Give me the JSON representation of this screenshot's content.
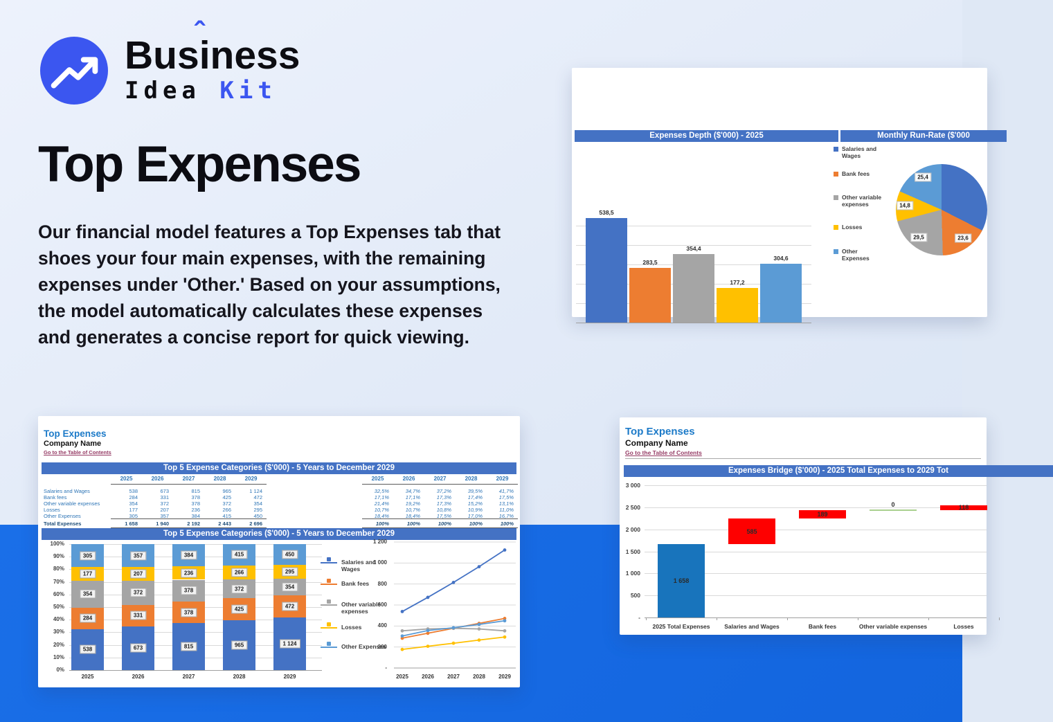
{
  "brand": {
    "word_pre": "Bus",
    "word_i": "i",
    "word_caret": "ˆ",
    "word_post": "ness",
    "line2_left": "Idea",
    "line2_right": "Kit",
    "accent_color": "#3b56f0"
  },
  "hero": {
    "title": "Top Expenses",
    "paragraph": "Our financial model features a Top Expenses tab that shoes your four main expenses, with the remaining expenses under 'Other.' Based on your assumptions, the model automatically calculates these expenses and generates a concise report for quick viewing."
  },
  "colors": {
    "banner": "#4472c4",
    "footer_band": "#1568e0",
    "series": [
      "#4472c4",
      "#ed7d31",
      "#a5a5a5",
      "#ffc000",
      "#5b9bd5"
    ],
    "bridge_base": "#1874bc",
    "bridge_delta": "#fe0000",
    "bridge_zero": "#a9d08e"
  },
  "legend_labels": [
    "Salaries and Wages",
    "Bank fees",
    "Other variable expenses",
    "Losses",
    "Other Expenses"
  ],
  "sheet_header": {
    "title": "Top Expenses",
    "company": "Company Name",
    "link": "Go to the Table of Contents"
  },
  "depth_chart": {
    "type": "bar",
    "title": "Expenses Depth ($'000) - 2025",
    "categories": [
      "Salaries and Wages",
      "Bank fees",
      "Other variable expenses",
      "Losses",
      "Other Expenses"
    ],
    "values": [
      538.5,
      283.5,
      354.4,
      177.2,
      304.6
    ],
    "value_labels": [
      "538,5",
      "283,5",
      "354,4",
      "177,2",
      "304,6"
    ],
    "ymax": 600,
    "grid_step": 100
  },
  "runrate_pie": {
    "type": "pie",
    "title": "Monthly Run-Rate ($'000",
    "slices": [
      {
        "name": "Salaries and Wages",
        "value": 44.9,
        "label": ""
      },
      {
        "name": "Bank fees",
        "value": 23.6,
        "label": "23,6"
      },
      {
        "name": "Other variable expenses",
        "value": 29.5,
        "label": "29,5"
      },
      {
        "name": "Losses",
        "value": 14.8,
        "label": "14,8"
      },
      {
        "name": "Other Expenses",
        "value": 25.4,
        "label": "25,4"
      }
    ]
  },
  "categories_table": {
    "banner": "Top 5 Expense Categories ($'000) - 5 Years to December 2029",
    "years": [
      "2025",
      "2026",
      "2027",
      "2028",
      "2029"
    ],
    "rows": [
      {
        "label": "Salaries and Wages",
        "values": [
          "538",
          "673",
          "815",
          "965",
          "1 124"
        ],
        "pcts": [
          "32,5%",
          "34,7%",
          "37,2%",
          "39,5%",
          "41,7%"
        ]
      },
      {
        "label": "Bank fees",
        "values": [
          "284",
          "331",
          "378",
          "425",
          "472"
        ],
        "pcts": [
          "17,1%",
          "17,1%",
          "17,3%",
          "17,4%",
          "17,5%"
        ]
      },
      {
        "label": "Other variable expenses",
        "values": [
          "354",
          "372",
          "378",
          "372",
          "354"
        ],
        "pcts": [
          "21,4%",
          "19,2%",
          "17,3%",
          "15,2%",
          "13,1%"
        ]
      },
      {
        "label": "Losses",
        "values": [
          "177",
          "207",
          "236",
          "266",
          "295"
        ],
        "pcts": [
          "10,7%",
          "10,7%",
          "10,8%",
          "10,9%",
          "11,0%"
        ]
      },
      {
        "label": "Other Expenses",
        "values": [
          "305",
          "357",
          "384",
          "415",
          "450"
        ],
        "pcts": [
          "18,4%",
          "18,4%",
          "17,5%",
          "17,0%",
          "16,7%"
        ]
      }
    ],
    "total": {
      "label": "Total Expenses",
      "values": [
        "1 658",
        "1 940",
        "2 192",
        "2 443",
        "2 696"
      ],
      "pcts": [
        "100%",
        "100%",
        "100%",
        "100%",
        "100%"
      ]
    }
  },
  "stacked_chart": {
    "type": "bar",
    "banner": "Top 5 Expense Categories ($'000) - 5 Years to December 2029",
    "categories": [
      "2025",
      "2026",
      "2027",
      "2028",
      "2029"
    ],
    "series": [
      {
        "name": "Salaries and Wages",
        "values": [
          538,
          673,
          815,
          965,
          1124
        ],
        "labels": [
          "538",
          "673",
          "815",
          "965",
          "1 124"
        ]
      },
      {
        "name": "Bank fees",
        "values": [
          284,
          331,
          378,
          425,
          472
        ],
        "labels": [
          "284",
          "331",
          "378",
          "425",
          "472"
        ]
      },
      {
        "name": "Other variable expenses",
        "values": [
          354,
          372,
          378,
          372,
          354
        ],
        "labels": [
          "354",
          "372",
          "378",
          "372",
          "354"
        ]
      },
      {
        "name": "Losses",
        "values": [
          177,
          207,
          236,
          266,
          295
        ],
        "labels": [
          "177",
          "207",
          "236",
          "266",
          "295"
        ]
      },
      {
        "name": "Other Expenses",
        "values": [
          305,
          357,
          384,
          415,
          450
        ],
        "labels": [
          "305",
          "357",
          "384",
          "415",
          "450"
        ]
      }
    ],
    "y_ticks": [
      "100%",
      "90%",
      "80%",
      "70%",
      "60%",
      "50%",
      "40%",
      "30%",
      "20%",
      "10%",
      "0%"
    ]
  },
  "line_chart": {
    "type": "line",
    "x": [
      "2025",
      "2026",
      "2027",
      "2028",
      "2029"
    ],
    "y_ticks": [
      "1 200",
      "1 000",
      "800",
      "600",
      "400",
      "200",
      "-"
    ],
    "ymax": 1200
  },
  "bridge_chart": {
    "type": "bar",
    "banner": "Expenses Bridge ($'000) - 2025 Total Expenses to 2029 Tot",
    "y_ticks": [
      "3 000",
      "2 500",
      "2 000",
      "1 500",
      "1 000",
      "500",
      "-"
    ],
    "ymax": 3000,
    "columns": [
      {
        "category": "2025 Total Expenses",
        "start": 0,
        "end": 1658,
        "label": "1 658",
        "kind": "base"
      },
      {
        "category": "Salaries and Wages",
        "start": 1658,
        "end": 2243,
        "label": "585",
        "kind": "delta"
      },
      {
        "category": "Bank fees",
        "start": 2243,
        "end": 2432,
        "label": "189",
        "kind": "delta"
      },
      {
        "category": "Other variable expenses",
        "start": 2432,
        "end": 2432,
        "label": "0",
        "kind": "zero"
      },
      {
        "category": "Losses",
        "start": 2432,
        "end": 2550,
        "label": "118",
        "kind": "delta"
      }
    ]
  }
}
